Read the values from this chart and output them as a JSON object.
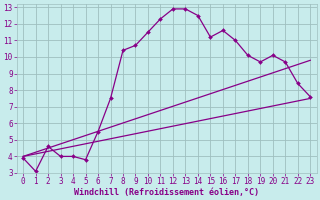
{
  "xlabel": "Windchill (Refroidissement éolien,°C)",
  "bg_color": "#c8ecec",
  "line_color": "#880088",
  "grid_color": "#9fbfbf",
  "xlim": [
    -0.5,
    23.5
  ],
  "ylim": [
    3,
    13.2
  ],
  "xticks": [
    0,
    1,
    2,
    3,
    4,
    5,
    6,
    7,
    8,
    9,
    10,
    11,
    12,
    13,
    14,
    15,
    16,
    17,
    18,
    19,
    20,
    21,
    22,
    23
  ],
  "yticks": [
    3,
    4,
    5,
    6,
    7,
    8,
    9,
    10,
    11,
    12,
    13
  ],
  "curve1_x": [
    0,
    1,
    2,
    3,
    4,
    5,
    6,
    7,
    8,
    9,
    10,
    11,
    12,
    13,
    14,
    15,
    16,
    17,
    18,
    19,
    20,
    21,
    22,
    23
  ],
  "curve1_y": [
    3.9,
    3.1,
    4.6,
    4.0,
    4.0,
    3.8,
    5.5,
    7.5,
    10.4,
    10.7,
    11.5,
    12.3,
    12.9,
    12.9,
    12.5,
    11.2,
    11.6,
    11.0,
    10.1,
    9.7,
    10.1,
    9.7,
    8.4,
    7.6
  ],
  "curve2_x": [
    0,
    23
  ],
  "curve2_y": [
    4.0,
    9.8
  ],
  "curve3_x": [
    0,
    23
  ],
  "curve3_y": [
    4.0,
    7.5
  ],
  "xlabel_fontsize": 6,
  "tick_fontsize": 5.5
}
